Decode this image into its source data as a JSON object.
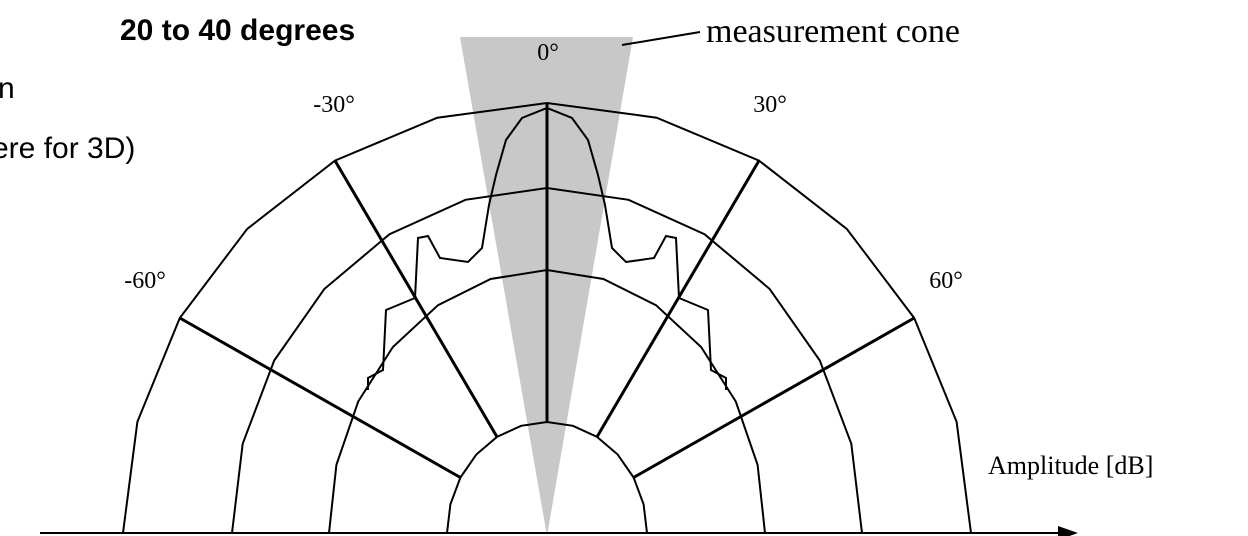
{
  "left_text": {
    "title": "20 to 40 degrees",
    "line2": "n",
    "line3": "ere for 3D)"
  },
  "diagram": {
    "cone_label": "measurement cone",
    "angle_labels": [
      "0°",
      "-30°",
      "30°",
      "-60°",
      "60°"
    ],
    "axis_label": "Amplitude [dB]"
  }
}
